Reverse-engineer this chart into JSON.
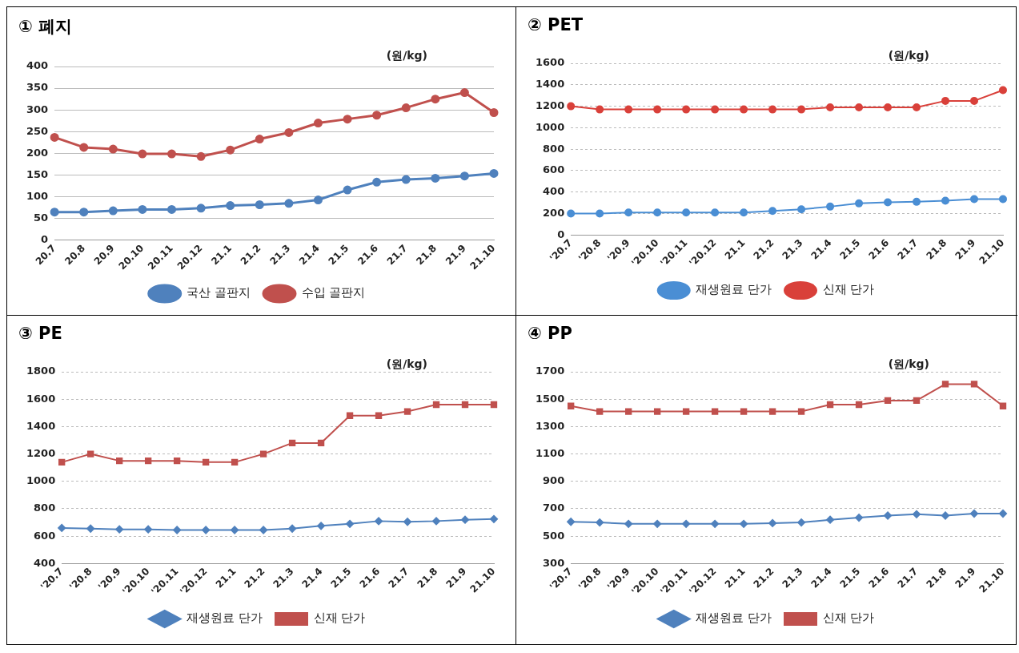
{
  "chart_data": [
    {
      "type": "line",
      "title": "① 폐지",
      "annotations": [
        "(원/kg)"
      ],
      "categories": [
        "20.7",
        "20.8",
        "20.9",
        "20.10",
        "20.11",
        "20.12",
        "21.1",
        "21.2",
        "21.3",
        "21.4",
        "21.5",
        "21.6",
        "21.7",
        "21.8",
        "21.9",
        "21.10"
      ],
      "series": [
        {
          "name": "국산 골판지",
          "color": "#4f81bd",
          "values": [
            65,
            65,
            68,
            71,
            71,
            74,
            80,
            82,
            85,
            93,
            116,
            134,
            140,
            143,
            148,
            154
          ]
        },
        {
          "name": "수입 골판지",
          "color": "#c0504d",
          "values": [
            237,
            214,
            210,
            199,
            199,
            193,
            208,
            233,
            248,
            270,
            279,
            288,
            305,
            325,
            340,
            294
          ]
        }
      ],
      "ylim": [
        0,
        400
      ],
      "yticks": [
        0,
        50,
        100,
        150,
        200,
        250,
        300,
        350,
        400
      ],
      "grid": "y",
      "legend": "bottom",
      "marker": "circle"
    },
    {
      "type": "line",
      "title": "② PET",
      "annotations": [
        "(원/kg)"
      ],
      "categories": [
        "'20.7",
        "'20.8",
        "'20.9",
        "'20.10",
        "'20.11",
        "'20.12",
        "21.1",
        "21.2",
        "21.3",
        "21.4",
        "21.5",
        "21.6",
        "21.7",
        "21.8",
        "21.9",
        "21.10"
      ],
      "series": [
        {
          "name": "재생원료 단가",
          "color": "#4a8ed4",
          "values": [
            200,
            200,
            210,
            210,
            210,
            210,
            210,
            225,
            240,
            265,
            295,
            305,
            310,
            320,
            335,
            335
          ]
        },
        {
          "name": "신재 단가",
          "color": "#d9403a",
          "values": [
            1200,
            1170,
            1170,
            1170,
            1170,
            1170,
            1170,
            1170,
            1170,
            1190,
            1190,
            1190,
            1190,
            1250,
            1250,
            1350
          ]
        }
      ],
      "ylim": [
        0,
        1600
      ],
      "yticks": [
        0,
        200,
        400,
        600,
        800,
        1000,
        1200,
        1400,
        1600
      ],
      "grid": "y",
      "legend": "bottom",
      "marker": "circle"
    },
    {
      "type": "line",
      "title": "③ PE",
      "annotations": [
        "(원/kg)"
      ],
      "categories": [
        "'20.7",
        "'20.8",
        "'20.9",
        "'20.10",
        "'20.11",
        "'20.12",
        "21.1",
        "21.2",
        "21.3",
        "21.4",
        "21.5",
        "21.6",
        "21.7",
        "21.8",
        "21.9",
        "21.10"
      ],
      "series": [
        {
          "name": "재생원료 단가",
          "color": "#4f81bd",
          "marker": "diamond",
          "values": [
            660,
            655,
            650,
            650,
            645,
            645,
            645,
            645,
            655,
            675,
            690,
            710,
            705,
            710,
            720,
            725
          ]
        },
        {
          "name": "신재 단가",
          "color": "#c0504d",
          "marker": "square",
          "values": [
            1140,
            1200,
            1150,
            1150,
            1150,
            1140,
            1140,
            1200,
            1280,
            1280,
            1480,
            1480,
            1510,
            1560,
            1560,
            1560
          ]
        }
      ],
      "ylim": [
        400,
        1800
      ],
      "yticks": [
        400,
        600,
        800,
        1000,
        1200,
        1400,
        1600,
        1800
      ],
      "grid": "y",
      "legend": "bottom"
    },
    {
      "type": "line",
      "title": "④ PP",
      "annotations": [
        "(원/kg)"
      ],
      "categories": [
        "'20.7",
        "'20.8",
        "'20.9",
        "'20.10",
        "'20.11",
        "'20.12",
        "21.1",
        "21.2",
        "21.3",
        "21.4",
        "21.5",
        "21.6",
        "21.7",
        "21.8",
        "21.9",
        "21.10"
      ],
      "series": [
        {
          "name": "재생원료 단가",
          "color": "#4f81bd",
          "marker": "diamond",
          "values": [
            605,
            600,
            590,
            590,
            590,
            590,
            590,
            595,
            600,
            620,
            635,
            650,
            660,
            650,
            665,
            665
          ]
        },
        {
          "name": "신재 단가",
          "color": "#c0504d",
          "marker": "square",
          "values": [
            1450,
            1410,
            1410,
            1410,
            1410,
            1410,
            1410,
            1410,
            1410,
            1460,
            1460,
            1490,
            1490,
            1610,
            1610,
            1450
          ]
        }
      ],
      "ylim": [
        300,
        1700
      ],
      "yticks": [
        300,
        500,
        700,
        900,
        1100,
        1300,
        1500,
        1700
      ],
      "grid": "y",
      "legend": "bottom"
    }
  ]
}
